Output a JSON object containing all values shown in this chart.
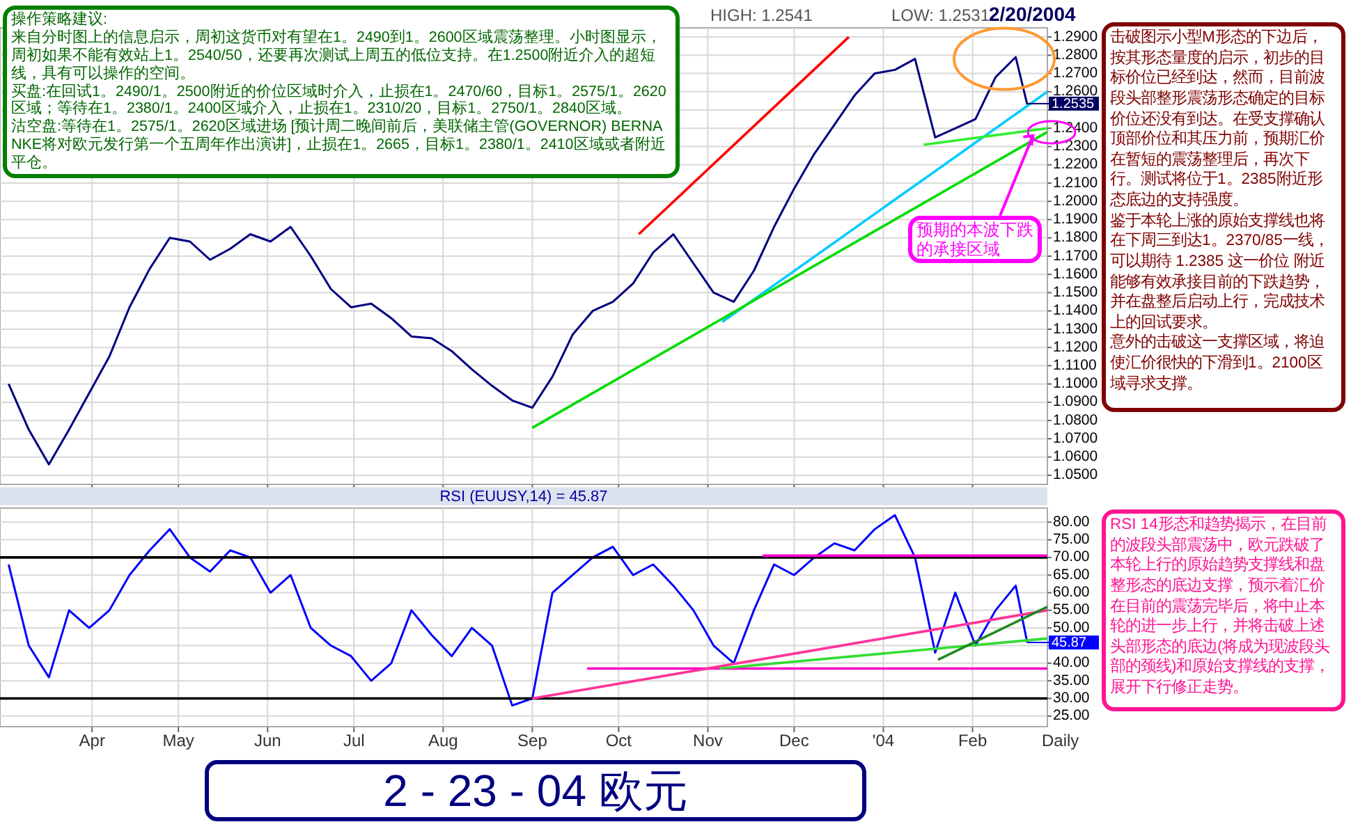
{
  "chart_data": [
    {
      "type": "line",
      "tick_labels": "y",
      "grid": true,
      "line_style": "solid",
      "xlim": [
        "2003-02-28",
        "2004-02-27"
      ],
      "ylim": [
        1.045,
        1.295
      ],
      "xticks": [
        {
          "value": "2003-04-01",
          "label": null
        },
        {
          "value": "2003-05-01",
          "label": null
        },
        {
          "value": "2003-06-01",
          "label": null
        },
        {
          "value": "2003-07-01",
          "label": null
        },
        {
          "value": "2003-08-01",
          "label": null
        },
        {
          "value": "2003-09-01",
          "label": null
        },
        {
          "value": "2003-10-01",
          "label": null
        },
        {
          "value": "2003-11-01",
          "label": null
        },
        {
          "value": "2003-12-01",
          "label": null
        },
        {
          "value": "2004-01-01",
          "label": null
        },
        {
          "value": "2004-02-01",
          "label": null
        }
      ],
      "yticks": [
        {
          "value": 1.05,
          "label": "1.0500"
        },
        {
          "value": 1.06,
          "label": "1.0600"
        },
        {
          "value": 1.07,
          "label": "1.0700"
        },
        {
          "value": 1.08,
          "label": "1.0800"
        },
        {
          "value": 1.09,
          "label": "1.0900"
        },
        {
          "value": 1.1,
          "label": "1.1000"
        },
        {
          "value": 1.11,
          "label": "1.1100"
        },
        {
          "value": 1.12,
          "label": "1.1200"
        },
        {
          "value": 1.13,
          "label": "1.1300"
        },
        {
          "value": 1.14,
          "label": "1.1400"
        },
        {
          "value": 1.15,
          "label": "1.1500"
        },
        {
          "value": 1.16,
          "label": "1.1600"
        },
        {
          "value": 1.17,
          "label": "1.1700"
        },
        {
          "value": 1.18,
          "label": "1.1800"
        },
        {
          "value": 1.19,
          "label": "1.1900"
        },
        {
          "value": 1.2,
          "label": "1.2000"
        },
        {
          "value": 1.21,
          "label": "1.2100"
        },
        {
          "value": 1.22,
          "label": "1.2200"
        },
        {
          "value": 1.23,
          "label": "1.2300"
        },
        {
          "value": 1.24,
          "label": "1.2400"
        },
        {
          "value": 1.25,
          "label": null
        },
        {
          "value": 1.26,
          "label": "1.2600"
        },
        {
          "value": 1.27,
          "label": "1.2700"
        },
        {
          "value": 1.28,
          "label": "1.2800"
        },
        {
          "value": 1.29,
          "label": "1.2900"
        }
      ],
      "x": [
        "2003-03-03",
        "2003-03-10",
        "2003-03-17",
        "2003-03-24",
        "2003-03-31",
        "2003-04-07",
        "2003-04-14",
        "2003-04-21",
        "2003-04-28",
        "2003-05-05",
        "2003-05-12",
        "2003-05-19",
        "2003-05-26",
        "2003-06-02",
        "2003-06-09",
        "2003-06-16",
        "2003-06-23",
        "2003-06-30",
        "2003-07-07",
        "2003-07-14",
        "2003-07-21",
        "2003-07-28",
        "2003-08-04",
        "2003-08-11",
        "2003-08-18",
        "2003-08-25",
        "2003-09-01",
        "2003-09-08",
        "2003-09-15",
        "2003-09-22",
        "2003-09-29",
        "2003-10-06",
        "2003-10-13",
        "2003-10-20",
        "2003-10-27",
        "2003-11-03",
        "2003-11-10",
        "2003-11-17",
        "2003-11-24",
        "2003-12-01",
        "2003-12-08",
        "2003-12-15",
        "2003-12-22",
        "2003-12-29",
        "2004-01-05",
        "2004-01-12",
        "2004-01-19",
        "2004-01-26",
        "2004-02-02",
        "2004-02-09",
        "2004-02-16",
        "2004-02-20"
      ],
      "series": [
        {
          "color": "#000080",
          "values": [
            1.1,
            1.075,
            1.056,
            1.075,
            1.095,
            1.115,
            1.142,
            1.163,
            1.18,
            1.178,
            1.168,
            1.174,
            1.182,
            1.178,
            1.186,
            1.17,
            1.152,
            1.142,
            1.144,
            1.136,
            1.126,
            1.125,
            1.118,
            1.108,
            1.099,
            1.091,
            1.087,
            1.104,
            1.127,
            1.14,
            1.145,
            1.155,
            1.172,
            1.182,
            1.166,
            1.15,
            1.145,
            1.162,
            1.186,
            1.207,
            1.226,
            1.242,
            1.258,
            1.27,
            1.272,
            1.278,
            1.235,
            1.24,
            1.245,
            1.268,
            1.279,
            1.253
          ]
        },
        {
          "type": "line",
          "color": "#ff0000",
          "x": [
            "2003-10-08",
            "2003-12-20"
          ],
          "values": [
            1.182,
            1.29
          ]
        },
        {
          "type": "line",
          "color": "#00ccff",
          "x": [
            "2003-11-06",
            "2004-02-27"
          ],
          "values": [
            1.134,
            1.26
          ]
        },
        {
          "type": "line",
          "color": "#00dd00",
          "x": [
            "2003-09-01",
            "2004-02-27"
          ],
          "values": [
            1.076,
            1.238
          ]
        },
        {
          "type": "line",
          "color": "#33ee33",
          "x": [
            "2004-01-15",
            "2004-02-27"
          ],
          "values": [
            1.231,
            1.24
          ]
        }
      ],
      "annotations": [
        "HIGH: 1.2541",
        "LOW: 1.2531",
        "2/20/2004",
        "操作策略建议:",
        "来自分时图上的信息启示，周初这货币对有望在1。2490到1。2600区域震荡整理。小时图显示，周初如果不能有效站上1。2540/50，还要再次测试上周五的低位支持。在1.2500附近介入的超短线，具有可以操作的空间。",
        "买盘:在回试1。2490/1。2500附近的价位区域时介入，止损在1。2470/60，目标1。2575/1。2620区域；等待在1。2380/1。2400区域介入，止损在1。2310/20，目标1。2750/1。2840区域。",
        "沽空盘:等待在1。2575/1。2620区域进场 [预计周二晚间前后，美联储主管(GOVERNOR) BERNANKE将对欧元发行第一个五周年作出演讲]，止损在1。2665，目标1。2380/1。2410区域或者附近平仓。",
        "击破图示小型M形态的下边后，按其形态量度的启示，初步的目标价位已经到达，然而，目前波段头部整形震荡形态确定的目标价位还没有到达。在受支撑确认顶部价位和其压力前，预期汇价在暂短的震荡整理后，再次下行。测试将位于1。2385附近形态底边的支持强度。",
        "鉴于本轮上涨的原始支撑线也将在下周三到达1。2370/85一线，可以期待 1.2385 这一价位 附近能够有效承接目前的下跌趋势，并在盘整后启动上行，完成技术上的回试要求。",
        "意外的击破这一支撑区域，将迫使汇价很快的下滑到1。2100区域寻求支撑。",
        {
          "text": "预期的本波下跌的承接区域",
          "x": "2004-02-22",
          "y": 1.236
        },
        {
          "text": "1.2535",
          "x": "2004-02-20",
          "y": 1.2535
        }
      ]
    },
    {
      "type": "line",
      "title": "RSI (EUUSY,14) = 45.87",
      "grid": true,
      "line_style": "solid",
      "xlim": [
        "2003-02-28",
        "2004-02-27"
      ],
      "ylim": [
        22,
        84
      ],
      "xticks": [
        {
          "value": "2003-04-01",
          "label": "Apr"
        },
        {
          "value": "2003-05-01",
          "label": "May"
        },
        {
          "value": "2003-06-01",
          "label": "Jun"
        },
        {
          "value": "2003-07-01",
          "label": "Jul"
        },
        {
          "value": "2003-08-01",
          "label": "Aug"
        },
        {
          "value": "2003-09-01",
          "label": "Sep"
        },
        {
          "value": "2003-10-01",
          "label": "Oct"
        },
        {
          "value": "2003-11-01",
          "label": "Nov"
        },
        {
          "value": "2003-12-01",
          "label": "Dec"
        },
        {
          "value": "2004-01-01",
          "label": "'04"
        },
        {
          "value": "2004-02-01",
          "label": "Feb"
        }
      ],
      "yticks": [
        {
          "value": 25,
          "label": "25.00"
        },
        {
          "value": 30,
          "label": "30.00"
        },
        {
          "value": 35,
          "label": "35.00"
        },
        {
          "value": 40,
          "label": "40.00"
        },
        {
          "value": 45,
          "label": null
        },
        {
          "value": 50,
          "label": "50.00"
        },
        {
          "value": 55,
          "label": "55.00"
        },
        {
          "value": 60,
          "label": "60.00"
        },
        {
          "value": 65,
          "label": "65.00"
        },
        {
          "value": 70,
          "label": "70.00"
        },
        {
          "value": 75,
          "label": "75.00"
        },
        {
          "value": 80,
          "label": "80.00"
        }
      ],
      "x": [
        "2003-03-03",
        "2003-03-10",
        "2003-03-17",
        "2003-03-24",
        "2003-03-31",
        "2003-04-07",
        "2003-04-14",
        "2003-04-21",
        "2003-04-28",
        "2003-05-05",
        "2003-05-12",
        "2003-05-19",
        "2003-05-26",
        "2003-06-02",
        "2003-06-09",
        "2003-06-16",
        "2003-06-23",
        "2003-06-30",
        "2003-07-07",
        "2003-07-14",
        "2003-07-21",
        "2003-07-28",
        "2003-08-04",
        "2003-08-11",
        "2003-08-18",
        "2003-08-25",
        "2003-09-01",
        "2003-09-08",
        "2003-09-15",
        "2003-09-22",
        "2003-09-29",
        "2003-10-06",
        "2003-10-13",
        "2003-10-20",
        "2003-10-27",
        "2003-11-03",
        "2003-11-10",
        "2003-11-17",
        "2003-11-24",
        "2003-12-01",
        "2003-12-08",
        "2003-12-15",
        "2003-12-22",
        "2003-12-29",
        "2004-01-05",
        "2004-01-12",
        "2004-01-19",
        "2004-01-26",
        "2004-02-02",
        "2004-02-09",
        "2004-02-16",
        "2004-02-20"
      ],
      "series": [
        {
          "color": "#0000ff",
          "values": [
            68,
            45,
            36,
            55,
            50,
            55,
            65,
            72,
            78,
            70,
            66,
            72,
            70,
            60,
            65,
            50,
            45,
            42,
            35,
            40,
            55,
            48,
            42,
            50,
            45,
            28,
            30,
            60,
            65,
            70,
            73,
            65,
            68,
            62,
            55,
            45,
            40,
            55,
            68,
            65,
            70,
            74,
            72,
            78,
            82,
            70,
            43,
            60,
            45,
            55,
            62,
            45.87
          ]
        },
        {
          "type": "line",
          "color": "#000000",
          "x": [
            "2003-02-28",
            "2004-02-27"
          ],
          "values": [
            70,
            70
          ]
        },
        {
          "type": "line",
          "color": "#000000",
          "x": [
            "2003-02-28",
            "2004-02-27"
          ],
          "values": [
            30,
            30
          ]
        },
        {
          "type": "line",
          "color": "#ff00cc",
          "x": [
            "2003-11-20",
            "2004-02-27"
          ],
          "values": [
            70.5,
            70.5
          ]
        },
        {
          "type": "line",
          "color": "#ff00cc",
          "x": [
            "2003-09-20",
            "2004-02-27"
          ],
          "values": [
            38.5,
            38.5
          ]
        },
        {
          "type": "line",
          "color": "#ff3399",
          "x": [
            "2003-09-01",
            "2004-02-27"
          ],
          "values": [
            30,
            55
          ]
        },
        {
          "type": "line",
          "color": "#33dd33",
          "x": [
            "2003-11-05",
            "2004-02-27"
          ],
          "values": [
            38.5,
            47
          ]
        },
        {
          "type": "line",
          "color": "#228822",
          "x": [
            "2004-01-20",
            "2004-02-27"
          ],
          "values": [
            41,
            56
          ]
        }
      ],
      "annotations": [
        {
          "text": "45.87",
          "x": "2004-02-20",
          "y": 45.87
        },
        "RSI 14形态和趋势揭示，在目前的波段头部震荡中，欧元跌破了本轮上行的原始趋势支撑线和盘整形态的底边支撑，预示着汇价在目前的震荡完毕后，将中止本轮的进一步上行，并将击破上述头部形态的底边(将成为现波段头部的颈线)和原始支撑线的支撑，展开下行修正走势。",
        "Daily",
        "2 - 23 - 04 欧元"
      ]
    }
  ]
}
